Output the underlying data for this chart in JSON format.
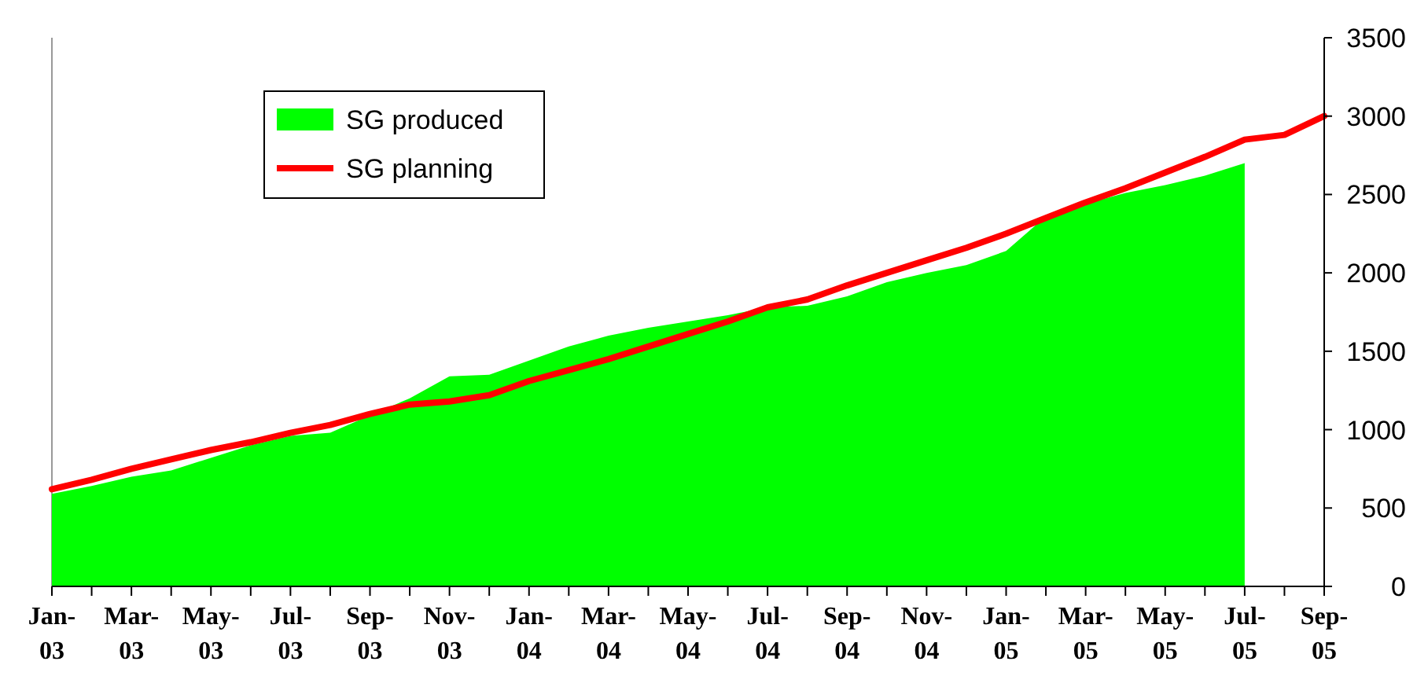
{
  "chart_data": {
    "type": "area",
    "categories": [
      "Jan-03",
      null,
      "Mar-03",
      null,
      "May-03",
      null,
      "Jul-03",
      null,
      "Sep-03",
      null,
      "Nov-03",
      null,
      "Jan-04",
      null,
      "Mar-04",
      null,
      "May-04",
      null,
      "Jul-04",
      null,
      "Sep-04",
      null,
      "Nov-04",
      null,
      "Jan-05",
      null,
      "Mar-05",
      null,
      "May-05",
      null,
      "Jul-05",
      null,
      "Sep-05"
    ],
    "series": [
      {
        "name": "SG produced",
        "color": "#00ff00",
        "values": [
          590,
          640,
          700,
          740,
          820,
          900,
          960,
          980,
          1090,
          1200,
          1340,
          1350,
          1440,
          1530,
          1600,
          1650,
          1690,
          1730,
          1780,
          1790,
          1850,
          1940,
          2000,
          2050,
          2140,
          2360,
          2440,
          2510,
          2560,
          2620,
          2700,
          null,
          null
        ]
      },
      {
        "name": "SG planning",
        "type": "line",
        "color": "#ff0000",
        "values": [
          620,
          680,
          750,
          810,
          870,
          920,
          980,
          1030,
          1100,
          1160,
          1180,
          1220,
          1310,
          1380,
          1450,
          1530,
          1610,
          1690,
          1780,
          1830,
          1920,
          2000,
          2080,
          2160,
          2250,
          2350,
          2450,
          2540,
          2640,
          2740,
          2850,
          2880,
          3000
        ]
      }
    ],
    "ylim": [
      0,
      3500
    ],
    "yticks": [
      0,
      500,
      1000,
      1500,
      2000,
      2500,
      3000,
      3500
    ],
    "legend": "top left",
    "grid": false
  }
}
